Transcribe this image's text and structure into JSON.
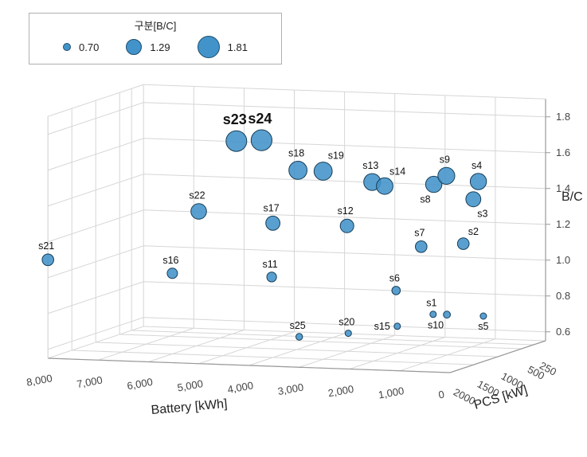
{
  "legend": {
    "title": "구분[B/C]",
    "items": [
      {
        "label": "0.70",
        "value": 0.7
      },
      {
        "label": "1.29",
        "value": 1.29
      },
      {
        "label": "1.81",
        "value": 1.81
      }
    ]
  },
  "chart_data": {
    "type": "scatter",
    "subtype": "3d-bubble",
    "title": "",
    "axes": {
      "x": {
        "label": "Battery [kWh]",
        "range": [
          0,
          8000
        ],
        "ticks": [
          8000,
          7000,
          6000,
          5000,
          4000,
          3000,
          2000,
          1000,
          0
        ],
        "tick_labels": [
          "8,000",
          "7,000",
          "6,000",
          "5,000",
          "4,000",
          "3,000",
          "2,000",
          "1,000",
          "0"
        ]
      },
      "y": {
        "label": "PCS [kW]",
        "range": [
          0,
          2000
        ],
        "ticks": [
          2000,
          1500,
          1000,
          500,
          250
        ],
        "tick_labels": [
          "2000",
          "1500",
          "1000",
          "500",
          "250"
        ]
      },
      "z": {
        "label": "B/C",
        "range": [
          0.6,
          1.8
        ],
        "ticks": [
          0.6,
          0.8,
          1.0,
          1.2,
          1.4,
          1.6,
          1.8
        ],
        "tick_labels": [
          "0.6",
          "0.8",
          "1.0",
          "1.2",
          "1.4",
          "1.6",
          "1.8"
        ]
      }
    },
    "size_encoding": "B/C value",
    "colors": {
      "bubble_fill": "#4293c9",
      "bubble_stroke": "#173d57",
      "grid": "#d6d6d6",
      "axis": "#999999",
      "tick_text": "#444444",
      "label_text": "#111111"
    },
    "points": [
      {
        "name": "s1",
        "battery": 2000,
        "pcs": 250,
        "bc": 0.7,
        "label_pos": "above",
        "emphasis": false
      },
      {
        "name": "s2",
        "battery": 1400,
        "pcs": 250,
        "bc": 1.1,
        "label_pos": "above-right",
        "emphasis": false
      },
      {
        "name": "s3",
        "battery": 1200,
        "pcs": 250,
        "bc": 1.35,
        "label_pos": "below-right",
        "emphasis": false
      },
      {
        "name": "s4",
        "battery": 1100,
        "pcs": 250,
        "bc": 1.45,
        "label_pos": "above",
        "emphasis": false
      },
      {
        "name": "s5",
        "battery": 1000,
        "pcs": 250,
        "bc": 0.7,
        "label_pos": "below",
        "emphasis": false
      },
      {
        "name": "s6",
        "battery": 2500,
        "pcs": 500,
        "bc": 0.85,
        "label_pos": "above",
        "emphasis": false
      },
      {
        "name": "s7",
        "battery": 2000,
        "pcs": 500,
        "bc": 1.1,
        "label_pos": "above",
        "emphasis": false
      },
      {
        "name": "s8",
        "battery": 1750,
        "pcs": 500,
        "bc": 1.45,
        "label_pos": "below-left",
        "emphasis": false
      },
      {
        "name": "s9",
        "battery": 1500,
        "pcs": 500,
        "bc": 1.5,
        "label_pos": "above",
        "emphasis": false
      },
      {
        "name": "s10",
        "battery": 1250,
        "pcs": 750,
        "bc": 0.75,
        "label_pos": "below-left",
        "emphasis": false
      },
      {
        "name": "s11",
        "battery": 4500,
        "pcs": 1000,
        "bc": 0.95,
        "label_pos": "above",
        "emphasis": false
      },
      {
        "name": "s12",
        "battery": 3000,
        "pcs": 1000,
        "bc": 1.25,
        "label_pos": "above",
        "emphasis": false
      },
      {
        "name": "s13",
        "battery": 2500,
        "pcs": 1000,
        "bc": 1.5,
        "label_pos": "above",
        "emphasis": false
      },
      {
        "name": "s14",
        "battery": 2250,
        "pcs": 1000,
        "bc": 1.48,
        "label_pos": "above-right",
        "emphasis": false
      },
      {
        "name": "s15",
        "battery": 2000,
        "pcs": 1000,
        "bc": 0.7,
        "label_pos": "left",
        "emphasis": false
      },
      {
        "name": "s16",
        "battery": 6000,
        "pcs": 1500,
        "bc": 1.0,
        "label_pos": "above",
        "emphasis": false
      },
      {
        "name": "s17",
        "battery": 4000,
        "pcs": 1500,
        "bc": 1.3,
        "label_pos": "above",
        "emphasis": false
      },
      {
        "name": "s18",
        "battery": 3500,
        "pcs": 1500,
        "bc": 1.6,
        "label_pos": "above",
        "emphasis": false
      },
      {
        "name": "s19",
        "battery": 3000,
        "pcs": 1500,
        "bc": 1.6,
        "label_pos": "above-right",
        "emphasis": false
      },
      {
        "name": "s20",
        "battery": 2500,
        "pcs": 1500,
        "bc": 0.7,
        "label_pos": "above",
        "emphasis": false
      },
      {
        "name": "s21",
        "battery": 8000,
        "pcs": 2000,
        "bc": 1.1,
        "label_pos": "above",
        "emphasis": false
      },
      {
        "name": "s22",
        "battery": 5000,
        "pcs": 2000,
        "bc": 1.4,
        "label_pos": "above",
        "emphasis": false
      },
      {
        "name": "s23",
        "battery": 4250,
        "pcs": 2000,
        "bc": 1.8,
        "label_pos": "above",
        "emphasis": true
      },
      {
        "name": "s24",
        "battery": 3750,
        "pcs": 2000,
        "bc": 1.81,
        "label_pos": "above",
        "emphasis": true
      },
      {
        "name": "s25",
        "battery": 3000,
        "pcs": 2000,
        "bc": 0.72,
        "label_pos": "above",
        "emphasis": false
      }
    ]
  }
}
